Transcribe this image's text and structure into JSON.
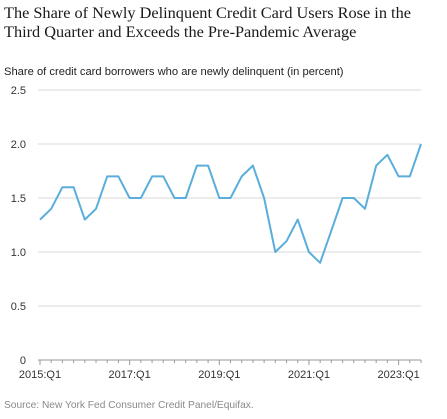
{
  "title": "The Share of Newly Delinquent Credit Card Users Rose in the Third Quarter and Exceeds the Pre-Pandemic Average",
  "subtitle": "Share of credit card borrowers who are newly delinquent (in percent)",
  "source": "Source: New York Fed Consumer Credit Panel/Equifax.",
  "colors": {
    "line": "#5aaedc",
    "grid": "#d9d9d9",
    "axis": "#999999"
  },
  "chart_data": {
    "type": "line",
    "title": "The Share of Newly Delinquent Credit Card Users Rose in the Third Quarter and Exceeds the Pre-Pandemic Average",
    "ylabel": "Share of credit card borrowers who are newly delinquent (in percent)",
    "xlabel": "",
    "ylim": [
      0,
      2.5
    ],
    "yticks": [
      0,
      0.5,
      1.0,
      1.5,
      2.0,
      2.5
    ],
    "ytick_labels": [
      "0",
      "0.5",
      "1.0",
      "1.5",
      "2.0",
      "2.5"
    ],
    "xtick_labels": [
      "2015:Q1",
      "2017:Q1",
      "2019:Q1",
      "2021:Q1",
      "2023:Q1"
    ],
    "xtick_positions": [
      0,
      8,
      16,
      24,
      32
    ],
    "grid": "horizontal",
    "x": [
      "2015:Q1",
      "2015:Q2",
      "2015:Q3",
      "2015:Q4",
      "2016:Q1",
      "2016:Q2",
      "2016:Q3",
      "2016:Q4",
      "2017:Q1",
      "2017:Q2",
      "2017:Q3",
      "2017:Q4",
      "2018:Q1",
      "2018:Q2",
      "2018:Q3",
      "2018:Q4",
      "2019:Q1",
      "2019:Q2",
      "2019:Q3",
      "2019:Q4",
      "2020:Q1",
      "2020:Q2",
      "2020:Q3",
      "2020:Q4",
      "2021:Q1",
      "2021:Q2",
      "2021:Q3",
      "2021:Q4",
      "2022:Q1",
      "2022:Q2",
      "2022:Q3",
      "2022:Q4",
      "2023:Q1",
      "2023:Q2",
      "2023:Q3"
    ],
    "series": [
      {
        "values": [
          1.3,
          1.4,
          1.6,
          1.6,
          1.3,
          1.4,
          1.7,
          1.7,
          1.5,
          1.5,
          1.7,
          1.7,
          1.5,
          1.5,
          1.8,
          1.8,
          1.5,
          1.5,
          1.7,
          1.8,
          1.5,
          1.0,
          1.1,
          1.3,
          1.0,
          0.9,
          1.2,
          1.5,
          1.5,
          1.4,
          1.8,
          1.9,
          1.7,
          1.7,
          2.0
        ]
      }
    ]
  }
}
